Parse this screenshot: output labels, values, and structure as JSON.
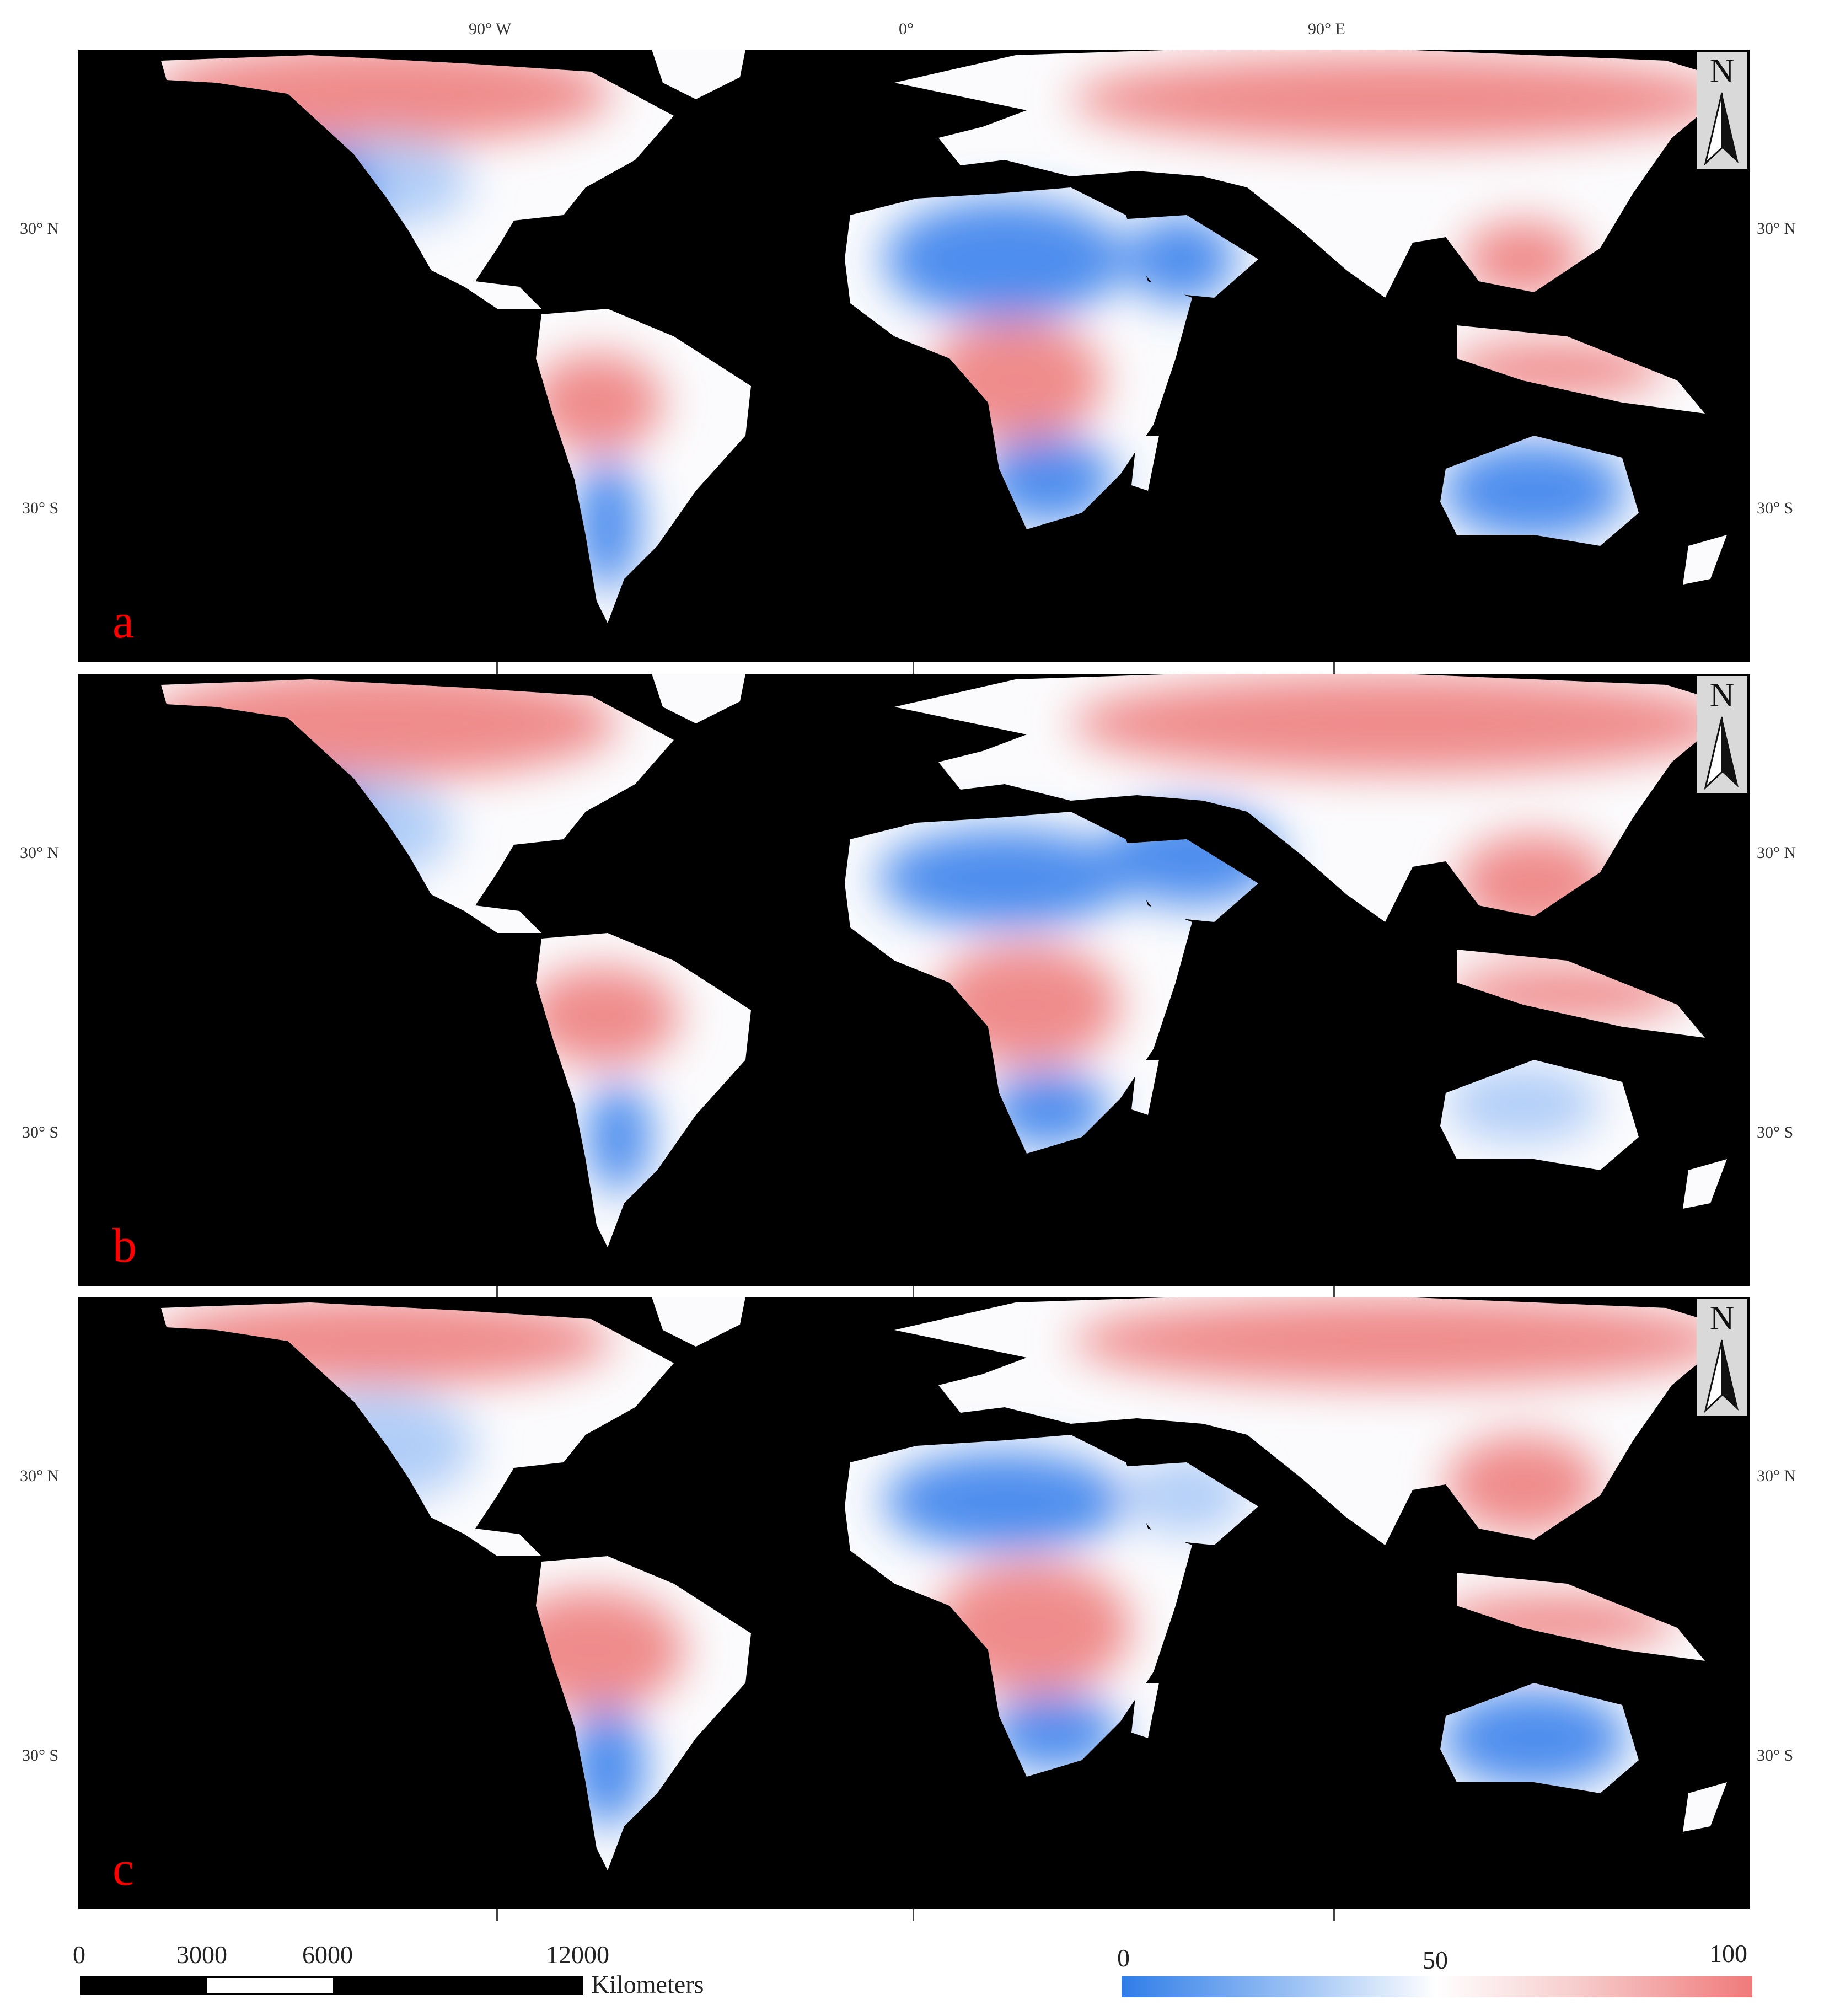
{
  "longitude_labels": [
    "90° W",
    "0°",
    "90° E"
  ],
  "latitude_labels": [
    "30° N",
    "30° S"
  ],
  "panels": [
    {
      "letter": "a"
    },
    {
      "letter": "b"
    },
    {
      "letter": "c"
    }
  ],
  "north_arrow_label": "N",
  "scale_bar": {
    "ticks": [
      "0",
      "3000",
      "6000",
      "12000"
    ],
    "unit": "Kilometers"
  },
  "color_legend": {
    "ticks": [
      "0",
      "50",
      "100"
    ],
    "colors": {
      "low": "#2f7de8",
      "mid": "#ffffff",
      "high": "#f07a7a"
    }
  },
  "colors": {
    "ocean": "#000000",
    "letter": "#ff0000",
    "blue": "#3b82ec",
    "light_blue": "#a9c9f7",
    "white": "#fbfbfd",
    "pink": "#f7c4c4",
    "red": "#ee7f7f"
  }
}
